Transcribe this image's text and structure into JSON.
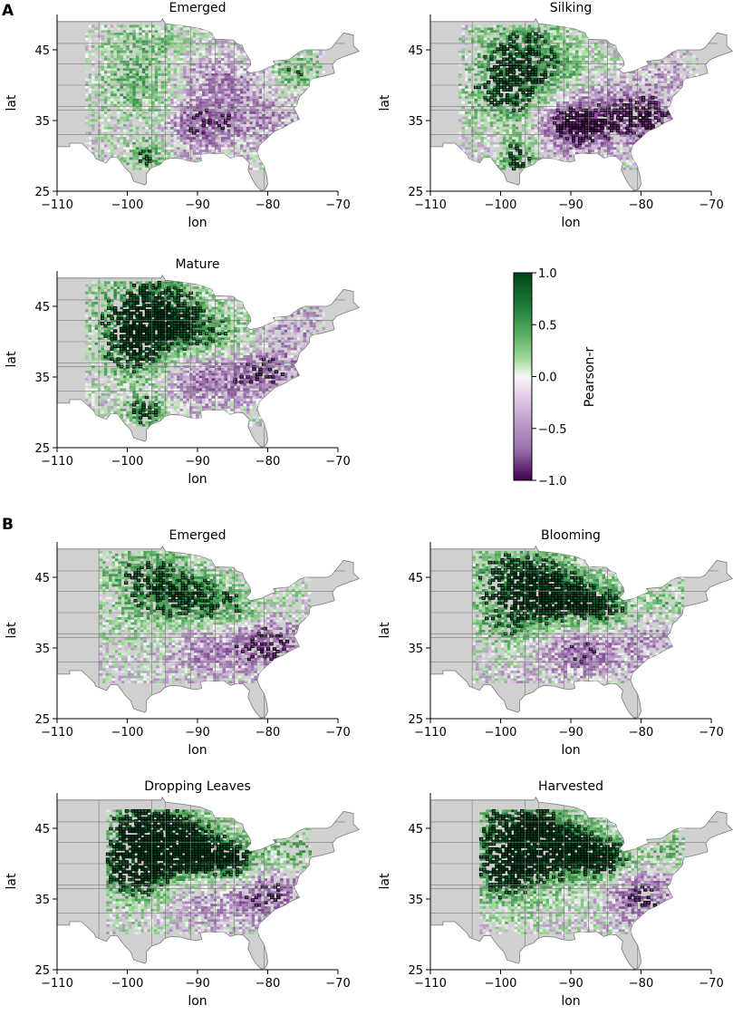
{
  "panel_labels": [
    "A",
    "B"
  ],
  "axes": {
    "xlabel": "lon",
    "ylabel": "lat",
    "x_ticks": [
      "−110",
      "−100",
      "−90",
      "−80",
      "−70"
    ],
    "y_ticks": [
      "45",
      "35",
      "25"
    ],
    "x_range": [
      -110,
      -70
    ],
    "y_range": [
      25,
      50
    ]
  },
  "colorbar": {
    "label": "Pearson-r",
    "ticks": [
      "1.0",
      "0.5",
      "0.0",
      "−0.5",
      "−1.0"
    ],
    "range": [
      -1.0,
      1.0
    ],
    "colors": {
      "high": "#00441b",
      "mid": "#f7f7f7",
      "low": "#40004b"
    }
  },
  "colors": {
    "land": "#d0d0d0",
    "border": "#7a7a7a",
    "significant_outline": "#000000"
  },
  "maps": [
    {
      "title": "Emerged",
      "panel": "A",
      "dominance": 0.0
    },
    {
      "title": "Silking",
      "panel": "A",
      "dominance": -0.15
    },
    {
      "title": "Mature",
      "panel": "A",
      "dominance": 0.45
    },
    {
      "title": "Emerged",
      "panel": "B",
      "dominance": 0.3
    },
    {
      "title": "Blooming",
      "panel": "B",
      "dominance": 0.6
    },
    {
      "title": "Dropping Leaves",
      "panel": "B",
      "dominance": 0.8
    },
    {
      "title": "Harvested",
      "panel": "B",
      "dominance": 0.8
    }
  ]
}
